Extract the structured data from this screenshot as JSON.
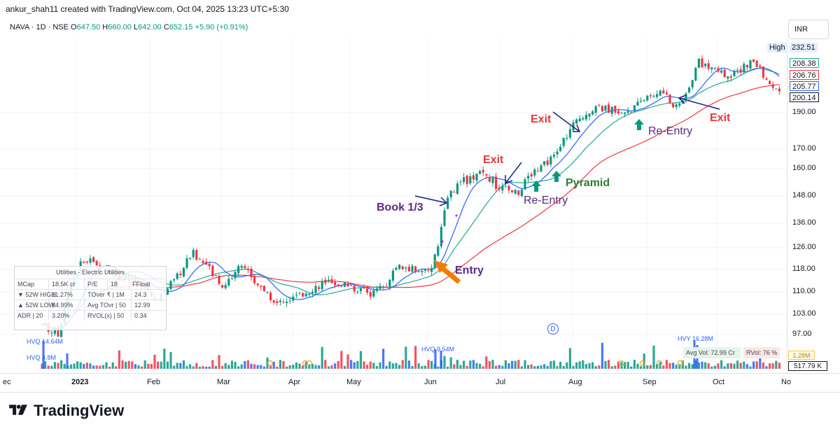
{
  "header": {
    "credit": "ankur_shah11 created with TradingView.com, Oct 04, 2025 13:23 UTC+5:30",
    "symbol_line": "NAVA · 1D · NSE",
    "open_label": "O",
    "open": "647.50",
    "high_label": "H",
    "high": "660.00",
    "low_label": "L",
    "low": "642.00",
    "close_label": "C",
    "close": "652.15",
    "change": "+5.90 (+0.91%)",
    "currency": "INR"
  },
  "price_axis": {
    "ticks": [
      "190.00",
      "170.00",
      "160.00",
      "148.00",
      "136.00",
      "126.00",
      "118.00",
      "110.00",
      "103.00",
      "97.00"
    ],
    "tags": {
      "high_label": "High",
      "high_value": "232.51",
      "green_ma": "208.38",
      "red_ma": "206.76",
      "blue_ma": "205.77",
      "last": "200.14"
    }
  },
  "time_axis": {
    "ticks": [
      "ec",
      "2023",
      "Feb",
      "Mar",
      "Apr",
      "May",
      "Jun",
      "Jul",
      "Aug",
      "Sep",
      "Oct",
      "No"
    ]
  },
  "info_table": {
    "title": "Utilities - Electric Utilities",
    "rows": [
      [
        "MCap",
        "18.5K cr",
        "P/E",
        "18",
        "FFloat",
        ""
      ],
      [
        "▼ 52W HIGH",
        "11.27%",
        "TOver ₹ | 1M",
        "24.3",
        "",
        ""
      ],
      [
        "▲ 52W LOW",
        "84.99%",
        "Avg TOvr | 50",
        "12.99",
        "",
        ""
      ],
      [
        "ADR | 20",
        "3.20%",
        "RVOL(x) | 50",
        "0.34",
        "",
        ""
      ]
    ]
  },
  "annotations": {
    "entry": "Entry",
    "book": "Book 1/3",
    "exit1": "Exit",
    "exit2": "Exit",
    "exit3": "Exit",
    "reentry1": "Re-Entry",
    "reentry2": "Re-Entry",
    "pyramid": "Pyramid"
  },
  "volume": {
    "labels": {
      "hvq1": "HVQ 14.64M",
      "hvq2": "HVQ 4.8M",
      "hvq3": "HVQ 9.54M",
      "hvy": "HVY 16.28M"
    },
    "avg_vol": "Avg Vol: 72.99 Cr",
    "rvol": "RVol: 76 %",
    "tag1": "1.28M",
    "tag2": "517.79 K"
  },
  "marker": "D",
  "footer": {
    "brand": "TradingView"
  },
  "colors": {
    "up": "#089981",
    "down": "#f23645",
    "ma_blue": "#2962ff",
    "ma_green": "#22ab94",
    "ma_red": "#f23645",
    "anno_red": "#e53935",
    "anno_purple": "#5b2a86",
    "anno_green": "#2e7d32",
    "arrow_orange": "#f57c00",
    "arrow_teal": "#089981"
  }
}
